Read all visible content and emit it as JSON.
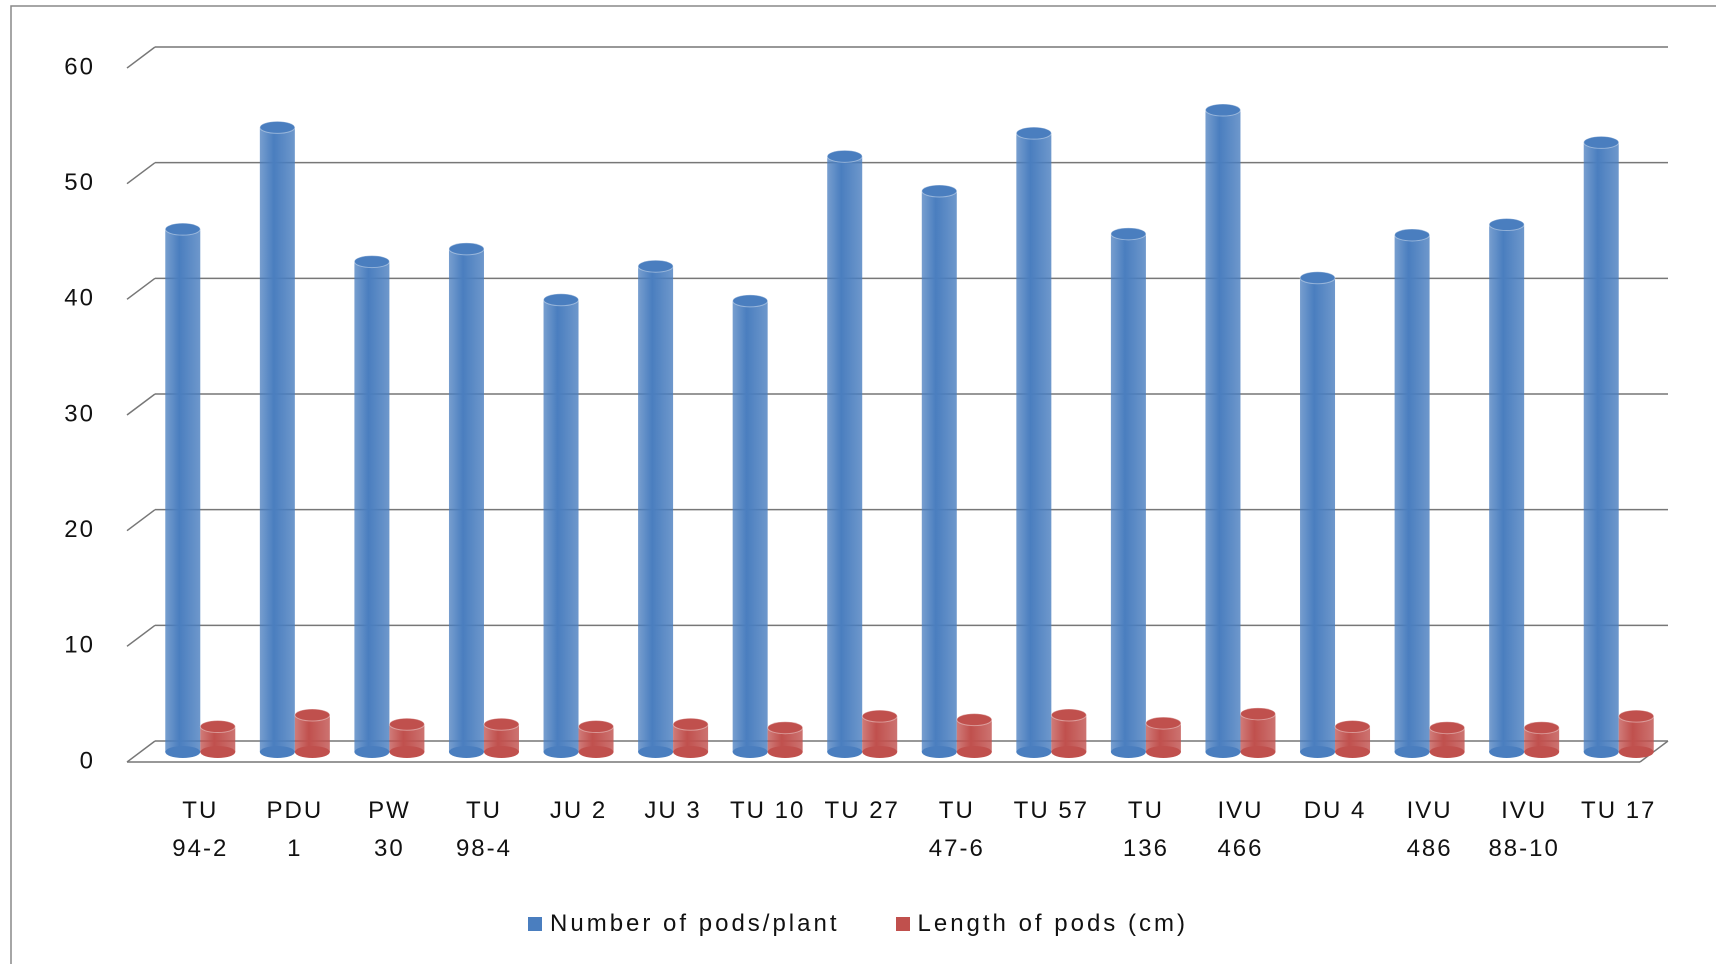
{
  "chart_data": {
    "type": "bar3d",
    "categories": [
      "TU\n94-2",
      "PDU\n1",
      "PW\n30",
      "TU\n98-4",
      "JU 2",
      "JU 3",
      "TU 10",
      "TU 27",
      "TU\n47-6",
      "TU 57",
      "TU\n136",
      "IVU\n466",
      "DU 4",
      "IVU\n486",
      "IVU\n88-10",
      "TU 17"
    ],
    "series": [
      {
        "name": "Number of pods/plant",
        "color": "#4a7ebf",
        "values": [
          45.2,
          54,
          42.4,
          43.5,
          39.1,
          42,
          39,
          51.5,
          48.5,
          53.5,
          44.8,
          55.5,
          41,
          44.7,
          45.6,
          52.7
        ]
      },
      {
        "name": "Length of pods (cm)",
        "color": "#c0504d",
        "values": [
          2.2,
          3.2,
          2.4,
          2.4,
          2.2,
          2.4,
          2.1,
          3.1,
          2.8,
          3.2,
          2.5,
          3.3,
          2.2,
          2.1,
          2.1,
          3.1
        ]
      }
    ],
    "ylim": [
      0,
      60
    ],
    "yticks": [
      0,
      10,
      20,
      30,
      40,
      50,
      60
    ],
    "grid": true,
    "legend": "bottom"
  }
}
